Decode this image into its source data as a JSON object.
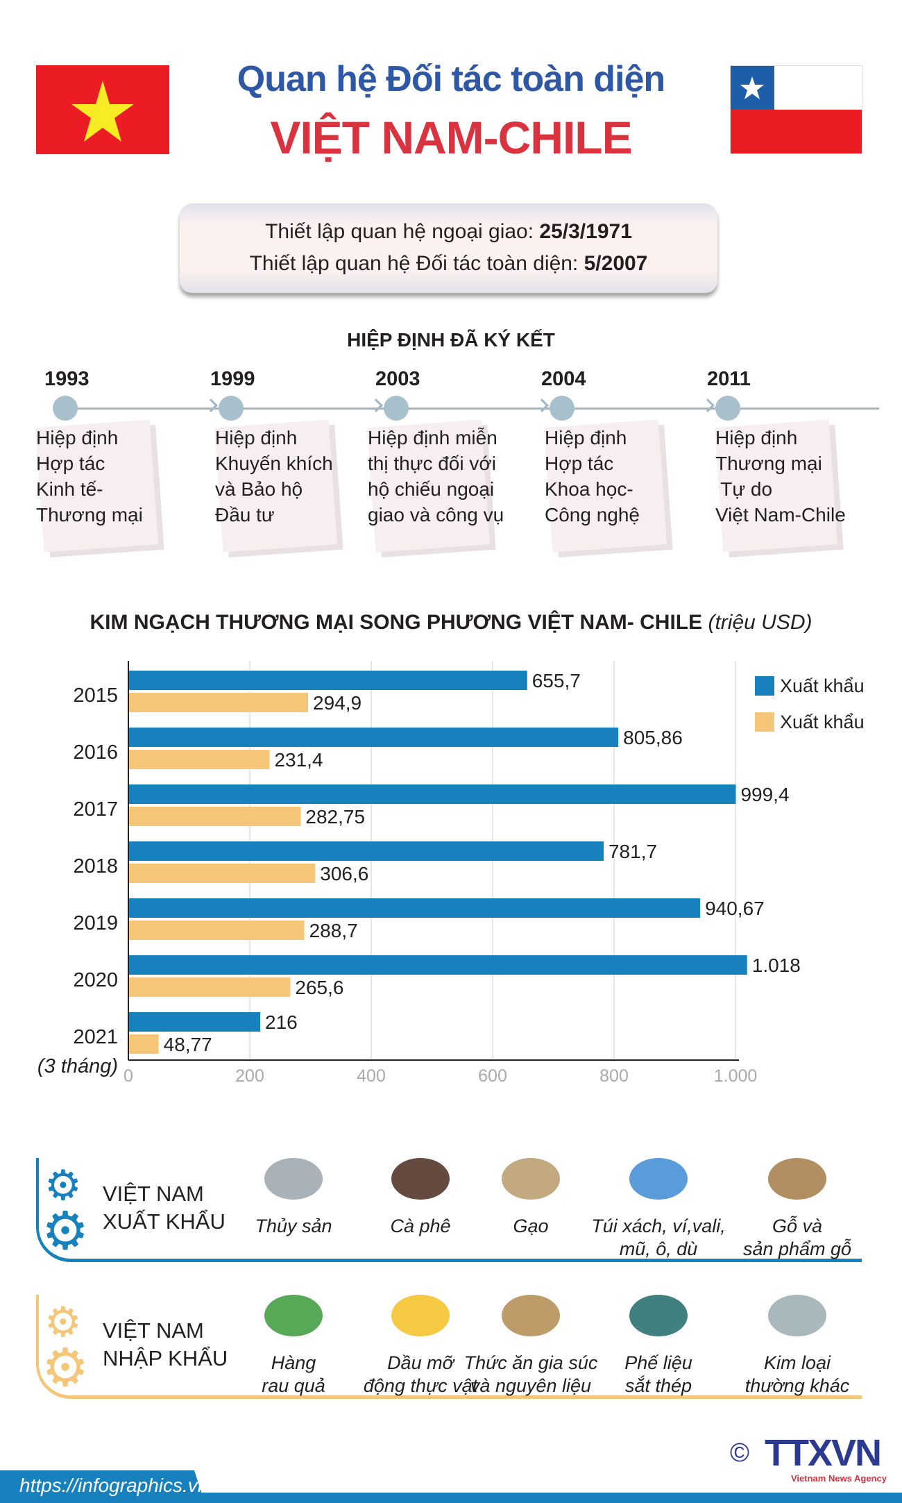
{
  "header": {
    "title_line1": "Quan hệ Đối tác toàn diện",
    "title_line2": "VIỆT NAM-CHILE"
  },
  "info": {
    "line1_label": "Thiết lập quan hệ ngoại giao: ",
    "line1_value": "25/3/1971",
    "line2_label": "Thiết lập quan hệ Đối tác toàn diện: ",
    "line2_value": "5/2007"
  },
  "agreements": {
    "heading": "HIỆP ĐỊNH ĐÃ KÝ KẾT",
    "items": [
      {
        "year": "1993",
        "text": "Hiệp định\nHợp tác\nKinh tế-\nThương mại"
      },
      {
        "year": "1999",
        "text": "Hiệp định\nKhuyến khích\nvà Bảo hộ\nĐầu tư"
      },
      {
        "year": "2003",
        "text": "Hiệp định miễn\nthị thực đối với\nhộ chiếu ngoại\ngiao và công vụ"
      },
      {
        "year": "2004",
        "text": "Hiệp định\nHợp tác\nKhoa học-\nCông nghệ"
      },
      {
        "year": "2011",
        "text": "Hiệp định\nThương mại\n Tự do\nViệt Nam-Chile"
      }
    ]
  },
  "chart_data": {
    "type": "bar",
    "orientation": "horizontal",
    "title": "KIM NGẠCH THƯƠNG MẠI SONG PHƯƠNG VIỆT NAM- CHILE",
    "unit": "(triệu USD)",
    "categories": [
      "2015",
      "2016",
      "2017",
      "2018",
      "2019",
      "2020",
      "2021"
    ],
    "category_sublabels": {
      "2021": "(3 tháng)"
    },
    "series": [
      {
        "name": "Xuất khẩu",
        "color": "#1681bd",
        "values": [
          655.7,
          805.86,
          999.4,
          781.7,
          940.67,
          1018,
          216
        ],
        "labels": [
          "655,7",
          "805,86",
          "999,4",
          "781,7",
          "940,67",
          "1.018",
          "216"
        ]
      },
      {
        "name": "Xuất khẩu",
        "color": "#f5c578",
        "values": [
          294.9,
          231.4,
          282.75,
          306.6,
          288.7,
          265.6,
          48.77
        ],
        "labels": [
          "294,9",
          "231,4",
          "282,75",
          "306,6",
          "288,7",
          "265,6",
          "48,77"
        ]
      }
    ],
    "xlim": [
      0,
      1000
    ],
    "ticks": [
      0,
      200,
      400,
      600,
      800,
      1000
    ],
    "tick_labels": [
      "0",
      "200",
      "400",
      "600",
      "800",
      "1.000"
    ],
    "grid": true,
    "legend": "top-right"
  },
  "exports": {
    "title1": "VIỆT NAM",
    "title2": "XUẤT KHẨU",
    "color": "#1681bd",
    "items": [
      "Thủy sản",
      "Cà phê",
      "Gạo",
      "Túi xách, ví,vali,\nmũ, ô, dù",
      "Gỗ và\nsản phẩm gỗ"
    ]
  },
  "imports": {
    "title1": "VIỆT NAM",
    "title2": "NHẬP KHẨU",
    "color": "#f5c578",
    "items": [
      "Hàng\nrau quả",
      "Dầu mỡ\nđộng thực vật",
      "Thức ăn gia súc\nvà nguyên liệu",
      "Phế liệu\nsắt thép",
      "Kim loại\nthường khác"
    ]
  },
  "footer": {
    "url": "https://infographics.vn",
    "logo": "TTXVN",
    "logo_sub": "Vietnam News Agency",
    "copyright": "©"
  }
}
